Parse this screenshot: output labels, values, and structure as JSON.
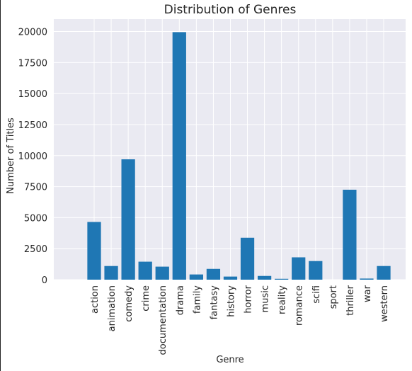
{
  "chart_data": {
    "type": "bar",
    "title": "Distribution of Genres",
    "xlabel": "Genre",
    "ylabel": "Number of Titles",
    "ylim": [
      0,
      21000
    ],
    "yticks": [
      0,
      2500,
      5000,
      7500,
      10000,
      12500,
      15000,
      17500,
      20000
    ],
    "grid": true,
    "categories": [
      "action",
      "animation",
      "comedy",
      "crime",
      "documentation",
      "drama",
      "family",
      "fantasy",
      "history",
      "horror",
      "music",
      "reality",
      "romance",
      "scifi",
      "sport",
      "thriller",
      "war",
      "western"
    ],
    "values": [
      4650,
      1100,
      9700,
      1450,
      1050,
      19950,
      420,
      870,
      250,
      3380,
      300,
      70,
      1800,
      1500,
      0,
      7250,
      90,
      1100
    ],
    "bar_color": "#1f77b4",
    "plot_bg": "#eaeaf2",
    "grid_color": "#ffffff"
  }
}
